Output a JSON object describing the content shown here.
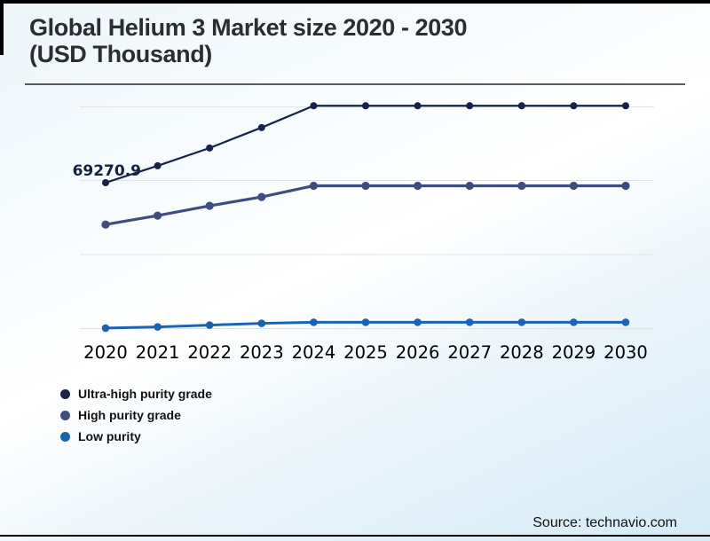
{
  "page": {
    "title_line1": "Global Helium 3 Market size 2020 - 2030",
    "title_line2": "(USD Thousand)",
    "source": "Source: technavio.com"
  },
  "colors": {
    "frame": "#000000",
    "title_text": "#2b2d31",
    "title_underline": "#5c5c5c",
    "gridline": "#e2e2e2",
    "axis_label": "#000000",
    "data_label": "#14213f",
    "ultra_high_purity": "#16224a",
    "high_purity": "#3e4d7d",
    "low_purity": "#1b62b0",
    "background_top": "#edf5fa",
    "background_bottom": "#d4ebf7"
  },
  "chart_data": {
    "type": "line",
    "title": "Global Helium 3 Market size 2020 - 2030 (USD Thousand)",
    "xlabel": "",
    "ylabel": "",
    "y_axis_labels_visible": false,
    "grid": "horizontal",
    "legend_position": "bottom-left",
    "categories": [
      "2020",
      "2021",
      "2022",
      "2023",
      "2024",
      "2025",
      "2026",
      "2027",
      "2028",
      "2029",
      "2030"
    ],
    "series": [
      {
        "name": "Ultra-high purity grade",
        "color": "#16224a",
        "values": [
          69270.9,
          77300,
          85750,
          95450,
          105800,
          105800,
          105800,
          105800,
          105800,
          105800,
          105800
        ]
      },
      {
        "name": "High purity grade",
        "color": "#3e4d7d",
        "values": [
          49400,
          53650,
          58300,
          62500,
          67800,
          67800,
          67800,
          67800,
          67800,
          67800,
          67800
        ]
      },
      {
        "name": "Low purity",
        "color": "#1b62b0",
        "values": [
          250,
          800,
          1650,
          2500,
          3000,
          3000,
          3000,
          3000,
          3000,
          3000,
          3000
        ]
      }
    ],
    "data_labels": [
      {
        "series": "Ultra-high purity grade",
        "category": "2020",
        "text": "69270.9"
      }
    ]
  },
  "legend": {
    "items": [
      {
        "label": "Ultra-high purity grade",
        "color": "#16224a"
      },
      {
        "label": "High purity grade",
        "color": "#3e4d7d"
      },
      {
        "label": "Low purity",
        "color": "#1b62b0"
      }
    ]
  }
}
